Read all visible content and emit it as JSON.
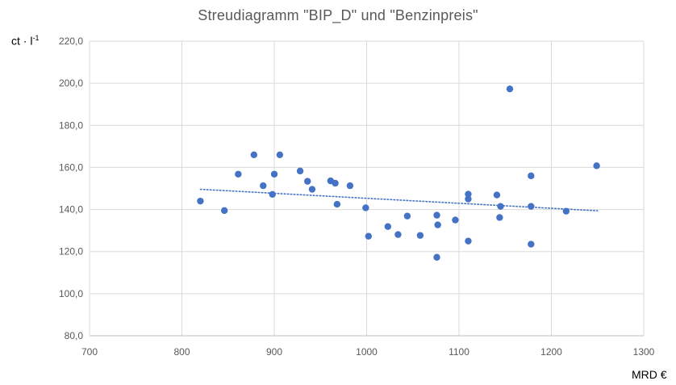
{
  "chart_data": {
    "type": "scatter",
    "title": "Streudiagramm \"BIP_D\" und \"Benzinpreis\"",
    "xlabel": "MRD €",
    "ylabel_parts": {
      "base": "ct · l",
      "exponent": "-1"
    },
    "xlim": [
      700,
      1300
    ],
    "ylim": [
      80,
      220
    ],
    "x_ticks": [
      700,
      800,
      900,
      1000,
      1100,
      1200,
      1300
    ],
    "x_tick_labels": [
      "700",
      "800",
      "900",
      "1000",
      "1100",
      "1200",
      "1300"
    ],
    "y_ticks": [
      80,
      100,
      120,
      140,
      160,
      180,
      200,
      220
    ],
    "y_tick_labels": [
      "80,0",
      "100,0",
      "120,0",
      "140,0",
      "160,0",
      "180,0",
      "200,0",
      "220,0"
    ],
    "grid": true,
    "point_color": "#4472C4",
    "trendline": {
      "type": "linear",
      "style": "dotted",
      "color": "#4472C4",
      "x_range": [
        820,
        1250
      ],
      "y_range": [
        149.6,
        139.4
      ]
    },
    "points": [
      {
        "x": 820,
        "y": 144
      },
      {
        "x": 846,
        "y": 139.5
      },
      {
        "x": 861,
        "y": 156.8
      },
      {
        "x": 878,
        "y": 166
      },
      {
        "x": 888,
        "y": 151.3
      },
      {
        "x": 898,
        "y": 147.2
      },
      {
        "x": 900,
        "y": 156.8
      },
      {
        "x": 906,
        "y": 166
      },
      {
        "x": 928,
        "y": 158.3
      },
      {
        "x": 936,
        "y": 153.4
      },
      {
        "x": 941,
        "y": 149.6
      },
      {
        "x": 961,
        "y": 153.6
      },
      {
        "x": 966,
        "y": 152.5
      },
      {
        "x": 968,
        "y": 142.5
      },
      {
        "x": 982,
        "y": 151.3
      },
      {
        "x": 999,
        "y": 140.8
      },
      {
        "x": 1002,
        "y": 127.3
      },
      {
        "x": 1023,
        "y": 131.9
      },
      {
        "x": 1034,
        "y": 128.1
      },
      {
        "x": 1044,
        "y": 136.9
      },
      {
        "x": 1058,
        "y": 127.7
      },
      {
        "x": 1076,
        "y": 117.3
      },
      {
        "x": 1076,
        "y": 137.3
      },
      {
        "x": 1077,
        "y": 132.7
      },
      {
        "x": 1096,
        "y": 135
      },
      {
        "x": 1110,
        "y": 125
      },
      {
        "x": 1110,
        "y": 145
      },
      {
        "x": 1110,
        "y": 147.3
      },
      {
        "x": 1141,
        "y": 146.9
      },
      {
        "x": 1144,
        "y": 136.2
      },
      {
        "x": 1145,
        "y": 141.5
      },
      {
        "x": 1155,
        "y": 197.3
      },
      {
        "x": 1178,
        "y": 123.5
      },
      {
        "x": 1178,
        "y": 141.5
      },
      {
        "x": 1178,
        "y": 156
      },
      {
        "x": 1216,
        "y": 139.2
      },
      {
        "x": 1249,
        "y": 160.8
      }
    ]
  }
}
